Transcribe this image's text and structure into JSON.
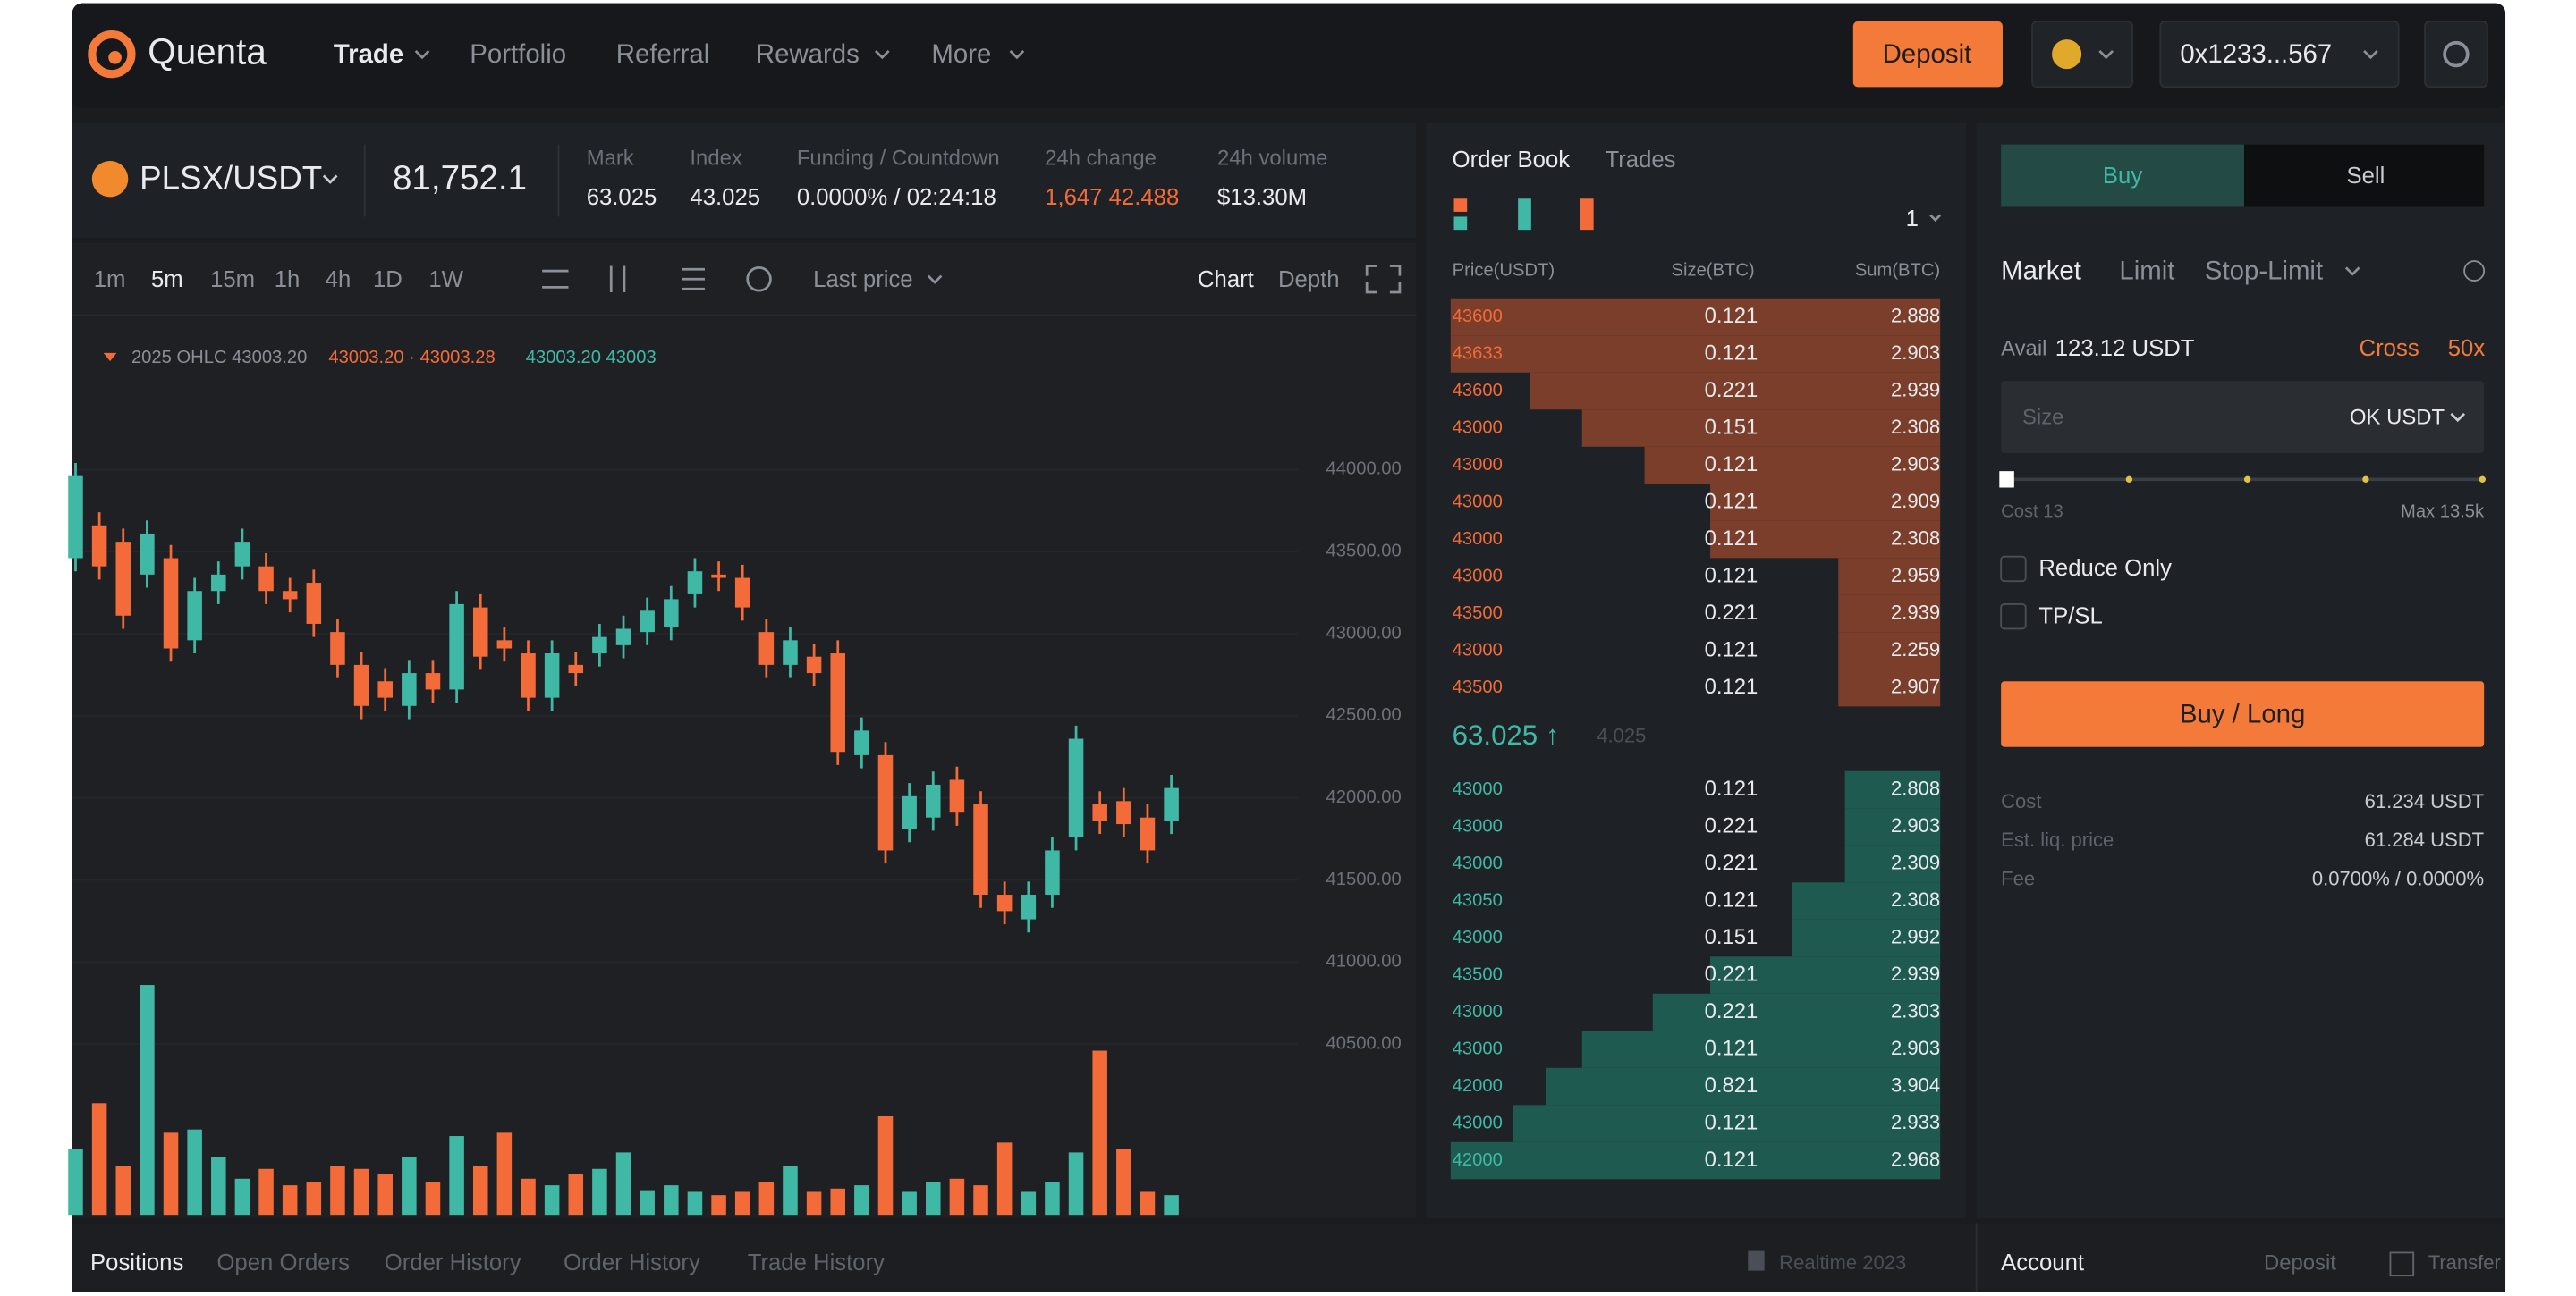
{
  "nav": {
    "brand": "Quenta",
    "items": [
      "Trade",
      "Portfolio",
      "Referral",
      "Rewards",
      "More"
    ],
    "deposit": "Deposit",
    "address": "0x1233...567"
  },
  "ticker": {
    "pair": "PLSX/USDT",
    "price": "81,752.1",
    "stats": [
      {
        "label": "Mark",
        "value": "63.025"
      },
      {
        "label": "Index",
        "value": "43.025"
      },
      {
        "label": "Funding / Countdown",
        "value": "0.0000% / 02:24:18"
      },
      {
        "label": "24h change",
        "value": "1,647 42.488"
      },
      {
        "label": "24h volume",
        "value": "$13.30M"
      }
    ]
  },
  "toolbar": {
    "intervals": [
      "1m",
      "5m",
      "15m",
      "1h",
      "4h",
      "1D",
      "1W"
    ],
    "price_type": "Last price",
    "views": [
      "Chart",
      "Depth"
    ]
  },
  "chart_data": {
    "type": "candlestick",
    "legend": [
      "2025 OHLC 43003.20",
      "43003.20 · 43003.28",
      "43003.20 43003"
    ],
    "up_color": "#3fb9a5",
    "down_color": "#f26b38",
    "open": [
      43460,
      43660,
      43560,
      43360,
      43460,
      42960,
      43260,
      43410,
      43410,
      43260,
      43310,
      43010,
      42810,
      42710,
      42560,
      42760,
      42660,
      43160,
      42960,
      42880,
      42610,
      42810,
      42880,
      42930,
      43010,
      43040,
      43240,
      43360,
      43340,
      43010,
      42810,
      42860,
      42880,
      42260,
      42260,
      41810,
      41880,
      42110,
      41960,
      41410,
      41260,
      41410,
      41760,
      41960,
      41980,
      41880,
      41860
    ],
    "high": [
      44040,
      43740,
      43640,
      43690,
      43540,
      43340,
      43440,
      43640,
      43490,
      43340,
      43390,
      43090,
      42890,
      42790,
      42840,
      42840,
      43260,
      43240,
      43040,
      42960,
      42960,
      42890,
      43060,
      43110,
      43220,
      43290,
      43460,
      43440,
      43420,
      43090,
      43040,
      42940,
      42960,
      42490,
      42340,
      42090,
      42160,
      42190,
      42040,
      41490,
      41490,
      41760,
      42440,
      42040,
      42060,
      41960,
      42140
    ],
    "low": [
      43380,
      43330,
      43030,
      43280,
      42830,
      42880,
      43180,
      43330,
      43180,
      43130,
      42980,
      42730,
      42480,
      42530,
      42480,
      42580,
      42580,
      42780,
      42830,
      42530,
      42530,
      42680,
      42800,
      42850,
      42930,
      42960,
      43160,
      43260,
      43080,
      42730,
      42730,
      42680,
      42200,
      42180,
      41600,
      41730,
      41800,
      41830,
      41330,
      41230,
      41180,
      41330,
      41680,
      41780,
      41760,
      41600,
      41780
    ],
    "close": [
      43960,
      43410,
      43110,
      43610,
      42910,
      43260,
      43360,
      43560,
      43260,
      43210,
      43060,
      42810,
      42560,
      42610,
      42760,
      42660,
      43180,
      42860,
      42910,
      42610,
      42880,
      42760,
      42980,
      43030,
      43140,
      43210,
      43380,
      43340,
      43160,
      42810,
      42960,
      42760,
      42280,
      42410,
      41680,
      42010,
      42080,
      41910,
      41410,
      41310,
      41410,
      41680,
      42360,
      41860,
      41840,
      41680,
      42060
    ],
    "volume": [
      40,
      68,
      30,
      140,
      50,
      52,
      35,
      22,
      28,
      18,
      20,
      30,
      28,
      25,
      35,
      20,
      48,
      30,
      50,
      22,
      18,
      25,
      28,
      38,
      15,
      18,
      14,
      12,
      14,
      20,
      30,
      14,
      16,
      18,
      60,
      14,
      20,
      22,
      18,
      44,
      14,
      20,
      38,
      100,
      40,
      14,
      12
    ],
    "ylim": [
      39460,
      44860
    ],
    "volume_ylim": [
      0,
      150
    ],
    "yticks": [
      {
        "value": 44000,
        "label": "44000.00"
      },
      {
        "value": 43500,
        "label": "43500.00"
      },
      {
        "value": 43000,
        "label": "43000.00"
      },
      {
        "value": 42500,
        "label": "42500.00"
      },
      {
        "value": 42000,
        "label": "42000.00"
      },
      {
        "value": 41500,
        "label": "41500.00"
      },
      {
        "value": 41000,
        "label": "41000.00"
      },
      {
        "value": 40500,
        "label": "40500.00"
      }
    ],
    "grid": true
  },
  "order_book": {
    "tabs": [
      "Order Book",
      "Trades"
    ],
    "grouping": "1",
    "headers": [
      "Price(USDT)",
      "Size(BTC)",
      "Sum(BTC)"
    ],
    "asks": [
      [
        "43600",
        "0.121",
        "2.888"
      ],
      [
        "43633",
        "0.121",
        "2.903"
      ],
      [
        "43600",
        "0.221",
        "2.939"
      ],
      [
        "43000",
        "0.151",
        "2.308"
      ],
      [
        "43000",
        "0.121",
        "2.903"
      ],
      [
        "43000",
        "0.121",
        "2.909"
      ],
      [
        "43000",
        "0.121",
        "2.308"
      ],
      [
        "43000",
        "0.121",
        "2.959"
      ],
      [
        "43500",
        "0.221",
        "2.939"
      ],
      [
        "43000",
        "0.121",
        "2.259"
      ],
      [
        "43500",
        "0.121",
        "2.907"
      ]
    ],
    "mid_price": "63.025 ↑",
    "mid_sub": "4.025",
    "bids": [
      [
        "43000",
        "0.121",
        "2.808"
      ],
      [
        "43000",
        "0.221",
        "2.903"
      ],
      [
        "43000",
        "0.221",
        "2.309"
      ],
      [
        "43050",
        "0.121",
        "2.308"
      ],
      [
        "43000",
        "0.151",
        "2.992"
      ],
      [
        "43500",
        "0.221",
        "2.939"
      ],
      [
        "43000",
        "0.221",
        "2.303"
      ],
      [
        "43000",
        "0.121",
        "2.903"
      ],
      [
        "42000",
        "0.821",
        "3.904"
      ],
      [
        "43000",
        "0.121",
        "2.933"
      ],
      [
        "42000",
        "0.121",
        "2.968"
      ]
    ]
  },
  "trade": {
    "sides": [
      "Buy",
      "Sell"
    ],
    "order_types": [
      "Market",
      "Limit",
      "Stop-Limit"
    ],
    "avail_label": "Avail",
    "avail": "123.12 USDT",
    "margin_mode": "Cross",
    "leverage": "50x",
    "size_placeholder": "Size",
    "size_unit": "OK USDT",
    "cost_label": "Cost 13",
    "max_label": "Max 13.5k",
    "checkboxes": [
      "Reduce Only",
      "TP/SL"
    ],
    "submit": "Buy / Long",
    "summary": [
      [
        "Cost",
        "61.234 USDT"
      ],
      [
        "Est. liq. price",
        "61.284 USDT"
      ],
      [
        "Fee",
        "0.0700% / 0.0000%"
      ]
    ]
  },
  "bottom": {
    "tabs": [
      "Positions",
      "Open Orders",
      "Order History",
      "Order History",
      "Trade History"
    ],
    "status": "Realtime 2023",
    "account": "Account",
    "links": [
      "Deposit",
      "Transfer"
    ]
  }
}
